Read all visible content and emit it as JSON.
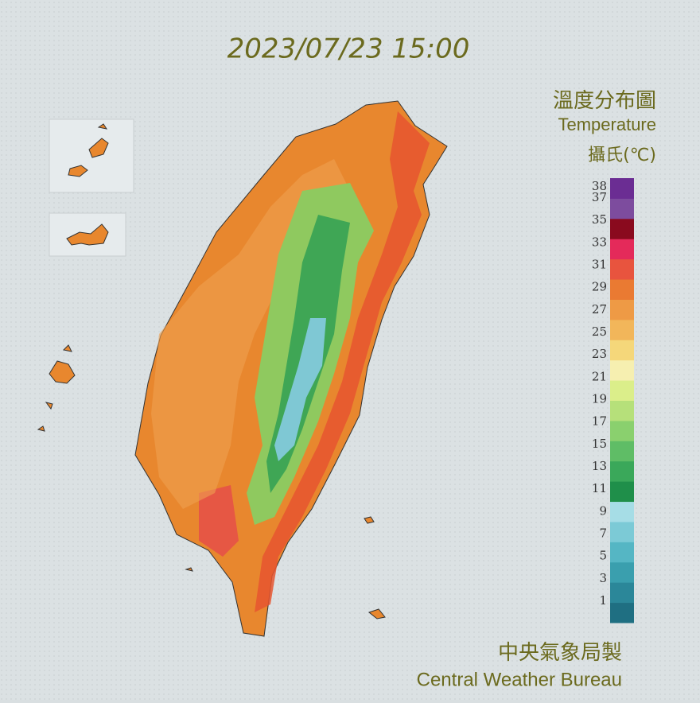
{
  "header": {
    "timestamp": "2023/07/23 15:00"
  },
  "legend": {
    "title_zh": "溫度分布圖",
    "title_en": "Temperature",
    "unit": "攝氏(℃)",
    "labels": [
      38,
      37,
      35,
      33,
      31,
      29,
      27,
      25,
      23,
      21,
      19,
      17,
      15,
      13,
      11,
      9,
      7,
      5,
      3,
      1
    ],
    "colors": [
      "#1f6f82",
      "#2b8799",
      "#3a9fae",
      "#55b6c4",
      "#7ccad6",
      "#a6dde6",
      "#1f8f4a",
      "#3aa85a",
      "#5fbd66",
      "#8ad06e",
      "#b6e07a",
      "#dbee8a",
      "#f6efb0",
      "#f5d77a",
      "#f2b65a",
      "#ee9a45",
      "#ea7a32",
      "#e8543e",
      "#e42a5a",
      "#8a0a1e",
      "#7d4c9e",
      "#6b2d93"
    ]
  },
  "footer": {
    "agency_zh": "中央氣象局製",
    "agency_en": "Central Weather Bureau"
  }
}
